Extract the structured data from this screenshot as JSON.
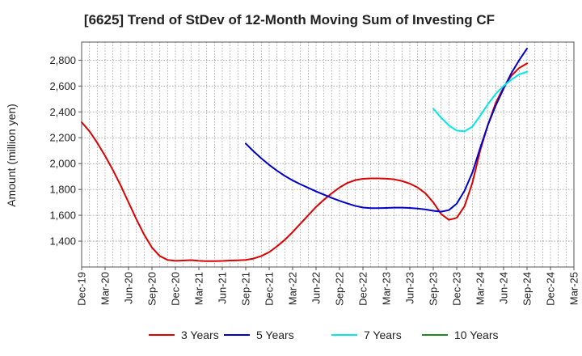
{
  "chart_data": {
    "type": "line",
    "title": "[6625]  Trend of StDev of 12-Month Moving Sum of Investing CF",
    "ylabel": "Amount (million yen)",
    "xlabel": "",
    "ylim": [
      1200,
      2940
    ],
    "y_ticks": [
      1400,
      1600,
      1800,
      2000,
      2200,
      2400,
      2600,
      2800
    ],
    "y_tick_labels": [
      "1,400",
      "1,600",
      "1,800",
      "2,000",
      "2,200",
      "2,400",
      "2,600",
      "2,800"
    ],
    "x_tick_labels": [
      "Dec-19",
      "Mar-20",
      "Jun-20",
      "Sep-20",
      "Dec-20",
      "Mar-21",
      "Jun-21",
      "Sep-21",
      "Dec-21",
      "Mar-22",
      "Jun-22",
      "Sep-22",
      "Dec-22",
      "Mar-23",
      "Jun-23",
      "Sep-23",
      "Dec-23",
      "Mar-24",
      "Jun-24",
      "Sep-24",
      "Dec-24",
      "Mar-25"
    ],
    "grid": true,
    "legend_position": "bottom",
    "series": [
      {
        "name": "3 Years",
        "color": "#dd0000",
        "x": [
          "Dec-19",
          "Jan-20",
          "Feb-20",
          "Mar-20",
          "Apr-20",
          "May-20",
          "Jun-20",
          "Jul-20",
          "Aug-20",
          "Sep-20",
          "Oct-20",
          "Nov-20",
          "Dec-20",
          "Jan-21",
          "Feb-21",
          "Mar-21",
          "Apr-21",
          "May-21",
          "Jun-21",
          "Jul-21",
          "Aug-21",
          "Sep-21",
          "Oct-21",
          "Nov-21",
          "Dec-21",
          "Jan-22",
          "Feb-22",
          "Mar-22",
          "Apr-22",
          "May-22",
          "Jun-22",
          "Jul-22",
          "Aug-22",
          "Sep-22",
          "Oct-22",
          "Nov-22",
          "Dec-22",
          "Jan-23",
          "Feb-23",
          "Mar-23",
          "Apr-23",
          "May-23",
          "Jun-23",
          "Jul-23",
          "Aug-23",
          "Sep-23",
          "Oct-23",
          "Nov-23",
          "Dec-23",
          "Jan-24",
          "Feb-24",
          "Mar-24",
          "Apr-24",
          "May-24",
          "Jun-24",
          "Jul-24",
          "Aug-24",
          "Sep-24"
        ],
        "values": [
          2320,
          2250,
          2160,
          2060,
          1950,
          1830,
          1700,
          1570,
          1450,
          1350,
          1285,
          1255,
          1248,
          1250,
          1253,
          1248,
          1245,
          1245,
          1247,
          1250,
          1252,
          1255,
          1265,
          1285,
          1315,
          1360,
          1410,
          1470,
          1535,
          1600,
          1665,
          1720,
          1770,
          1815,
          1850,
          1872,
          1882,
          1885,
          1885,
          1883,
          1878,
          1865,
          1845,
          1815,
          1770,
          1700,
          1610,
          1565,
          1580,
          1670,
          1850,
          2100,
          2300,
          2470,
          2590,
          2680,
          2740,
          2775
        ]
      },
      {
        "name": "5 Years",
        "color": "#0000cc",
        "x": [
          "Sep-21",
          "Oct-21",
          "Nov-21",
          "Dec-21",
          "Jan-22",
          "Feb-22",
          "Mar-22",
          "Apr-22",
          "May-22",
          "Jun-22",
          "Jul-22",
          "Aug-22",
          "Sep-22",
          "Oct-22",
          "Nov-22",
          "Dec-22",
          "Jan-23",
          "Feb-23",
          "Mar-23",
          "Apr-23",
          "May-23",
          "Jun-23",
          "Jul-23",
          "Aug-23",
          "Sep-23",
          "Oct-23",
          "Nov-23",
          "Dec-23",
          "Jan-24",
          "Feb-24",
          "Mar-24",
          "Apr-24",
          "May-24",
          "Jun-24",
          "Jul-24",
          "Aug-24",
          "Sep-24"
        ],
        "values": [
          2155,
          2095,
          2040,
          1990,
          1945,
          1905,
          1870,
          1840,
          1812,
          1785,
          1760,
          1735,
          1712,
          1692,
          1673,
          1660,
          1655,
          1655,
          1657,
          1659,
          1659,
          1657,
          1652,
          1645,
          1635,
          1628,
          1640,
          1690,
          1790,
          1930,
          2120,
          2300,
          2450,
          2580,
          2700,
          2800,
          2890
        ]
      },
      {
        "name": "7 Years",
        "color": "#00e8e8",
        "x": [
          "Sep-23",
          "Oct-23",
          "Nov-23",
          "Dec-23",
          "Jan-24",
          "Feb-24",
          "Mar-24",
          "Apr-24",
          "May-24",
          "Jun-24",
          "Jul-24",
          "Aug-24",
          "Sep-24"
        ],
        "values": [
          2425,
          2355,
          2295,
          2255,
          2250,
          2285,
          2370,
          2460,
          2540,
          2600,
          2650,
          2690,
          2710
        ]
      },
      {
        "name": "10 Years",
        "color": "#228822",
        "x": [],
        "values": []
      }
    ]
  }
}
